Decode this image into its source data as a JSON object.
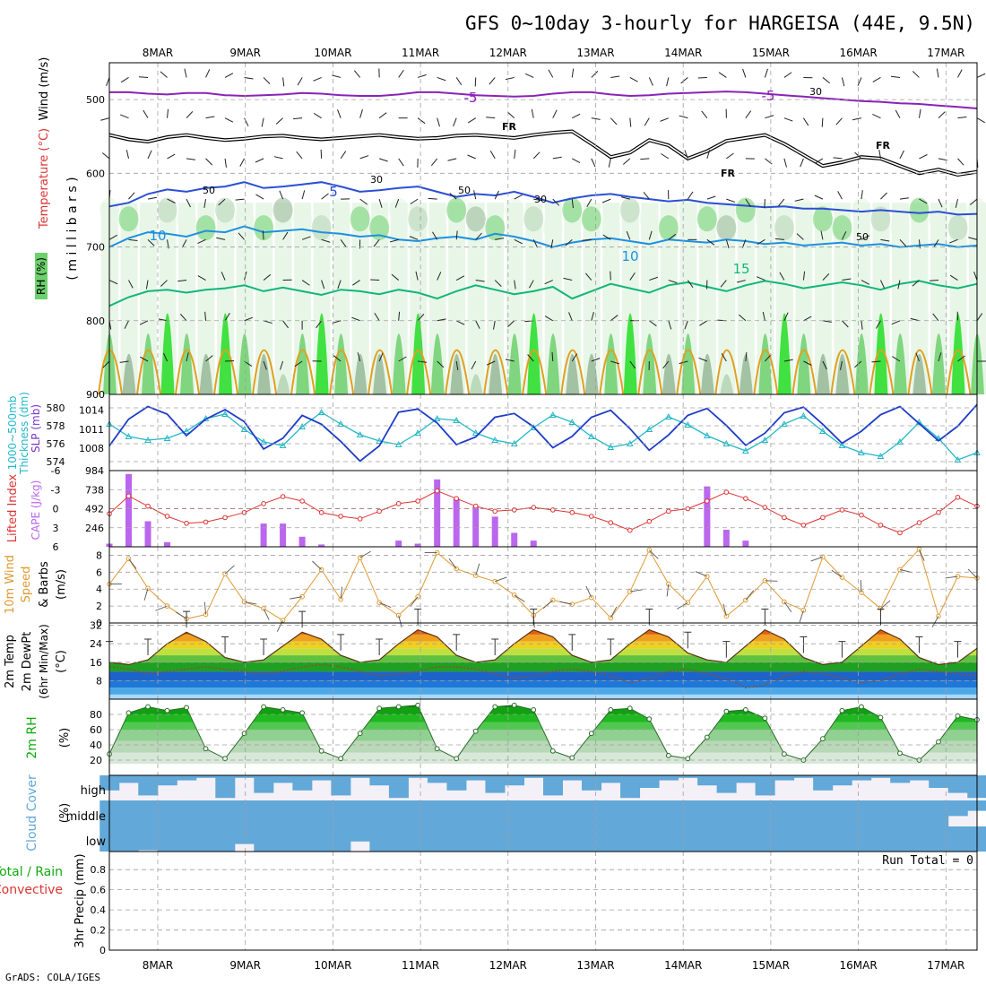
{
  "title": "GFS 0~10day 3-hourly for HARGEISA (44E, 9.5N)",
  "credit": "GrADS: COLA/IGES",
  "run_total": "Run Total = 0",
  "dates": [
    "8MAR",
    "9MAR",
    "10MAR",
    "11MAR",
    "12MAR",
    "13MAR",
    "14MAR",
    "15MAR",
    "16MAR",
    "17MAR"
  ],
  "colors": {
    "rh_light": "#e6f5e6",
    "rh_mid": "#b4d4b4",
    "rh_dark": "#96b896",
    "rh_green": "#6cd06c",
    "rh_bright": "#22dd22",
    "temp_5": "#2b4fd4",
    "temp_10": "#1e90e0",
    "temp_15": "#11b67a",
    "temp_20": "#e0a020",
    "temp_neg5": "#8a22b8",
    "freezing": "#000000",
    "slp": "#1e3cc8",
    "thickness": "#22b8c8",
    "cape": "#bb66ee",
    "li": "#dd3333",
    "wind10": "#e09a30",
    "cloud": "#62a8d8",
    "rh2m": "#11aa11"
  },
  "chart_data": [
    {
      "panel": "upper-air",
      "type": "heatmap",
      "ylabel_parts": [
        "RH (%)",
        "Temperature (°C)",
        "Wind (m/s)"
      ],
      "ylabel_unit": "( m i l l i b a r s )",
      "yticks": [
        500,
        600,
        700,
        800,
        900
      ],
      "ylim": [
        900,
        450
      ],
      "contour_labels": [
        "-5",
        "-5",
        "FR",
        "FR",
        "FR",
        "5",
        "10",
        "10",
        "15",
        "30",
        "30",
        "30",
        "50",
        "50",
        "50"
      ],
      "isotherm_levels": {
        "neg5": [
          490,
          490,
          492,
          493,
          491,
          491,
          494,
          495,
          494,
          493,
          491,
          492,
          494,
          495,
          495,
          493,
          490,
          490,
          492,
          494,
          495,
          496,
          495,
          492,
          490,
          490,
          493,
          495,
          494,
          492,
          491,
          490,
          489,
          490,
          492,
          494,
          496,
          498,
          500,
          502,
          503,
          505,
          506,
          508,
          510,
          512
        ],
        "freezing": [
          548,
          554,
          557,
          551,
          548,
          552,
          555,
          553,
          550,
          549,
          552,
          554,
          552,
          550,
          548,
          551,
          553,
          552,
          549,
          548,
          550,
          552,
          548,
          545,
          543,
          560,
          578,
          572,
          555,
          562,
          580,
          570,
          556,
          552,
          548,
          560,
          575,
          590,
          585,
          578,
          580,
          590,
          600,
          595,
          602,
          598
        ],
        "t5": [
          645,
          640,
          628,
          622,
          625,
          620,
          618,
          612,
          620,
          618,
          615,
          612,
          618,
          625,
          623,
          620,
          618,
          625,
          632,
          628,
          630,
          625,
          632,
          640,
          634,
          630,
          628,
          632,
          635,
          638,
          636,
          640,
          642,
          644,
          646,
          645,
          648,
          648,
          650,
          652,
          650,
          652,
          654,
          652,
          656,
          655
        ],
        "t10": [
          700,
          688,
          680,
          682,
          686,
          678,
          680,
          672,
          680,
          678,
          676,
          680,
          682,
          686,
          684,
          690,
          692,
          688,
          686,
          690,
          682,
          686,
          692,
          700,
          694,
          690,
          688,
          692,
          696,
          690,
          692,
          694,
          690,
          692,
          696,
          694,
          698,
          696,
          694,
          698,
          696,
          700,
          698,
          696,
          700,
          698
        ],
        "t15": [
          780,
          768,
          760,
          758,
          762,
          758,
          756,
          752,
          760,
          755,
          760,
          765,
          758,
          760,
          764,
          758,
          762,
          770,
          760,
          752,
          758,
          764,
          760,
          754,
          770,
          760,
          750,
          756,
          762,
          752,
          748,
          754,
          760,
          752,
          746,
          750,
          756,
          752,
          748,
          752,
          758,
          750,
          746,
          752,
          756,
          750
        ]
      },
      "rh_bands": [
        3,
        2,
        3,
        4,
        3,
        2,
        4,
        3,
        2,
        1,
        3,
        4,
        3,
        2,
        2,
        3,
        4,
        3,
        2,
        1,
        2,
        3,
        4,
        3,
        2,
        2,
        3,
        4,
        3,
        2,
        3,
        2,
        1,
        2,
        3,
        4,
        3,
        2,
        2,
        3,
        4,
        3,
        2,
        3,
        4,
        3
      ]
    },
    {
      "panel": "slp-thickness",
      "type": "line",
      "ylabel_left": "Thickness (dm)",
      "ylabel_left2": "1000~500mb",
      "ylabel_right": "SLP (mb)",
      "yticks_left": [
        574,
        576,
        578,
        580
      ],
      "yticks_right": [
        1008,
        1011,
        1014
      ],
      "series": [
        {
          "name": "SLP (mb)",
          "axis": "right",
          "values": [
            1008.4,
            1012.6,
            1014.6,
            1013.4,
            1010.0,
            1012.6,
            1014.1,
            1012.2,
            1007.9,
            1009.6,
            1013.2,
            1011.8,
            1009.1,
            1006.0,
            1008.4,
            1013.7,
            1014.2,
            1012.0,
            1008.6,
            1009.8,
            1012.9,
            1013.5,
            1011.4,
            1008.1,
            1009.9,
            1012.9,
            1014.0,
            1011.1,
            1007.7,
            1010.1,
            1013.2,
            1014.3,
            1011.6,
            1008.5,
            1010.4,
            1013.6,
            1014.5,
            1011.8,
            1008.8,
            1010.7,
            1013.3,
            1014.6,
            1011.9,
            1009.2,
            1011.5,
            1014.9
          ]
        },
        {
          "name": "Thickness (dm)",
          "axis": "left",
          "values": [
            578.2,
            576.8,
            576.4,
            576.6,
            577.4,
            578.8,
            579.3,
            577.6,
            576.2,
            575.8,
            577.9,
            579.5,
            578.2,
            577.0,
            576.3,
            575.9,
            577.2,
            578.8,
            578.6,
            577.2,
            576.4,
            576.0,
            577.8,
            579.2,
            578.4,
            576.8,
            575.6,
            576.0,
            577.6,
            579.0,
            578.1,
            576.9,
            576.0,
            575.2,
            576.4,
            578.2,
            579.1,
            577.4,
            575.8,
            575.0,
            574.6,
            576.2,
            578.4,
            576.6,
            574.2,
            575.0
          ]
        }
      ]
    },
    {
      "panel": "cape-li",
      "type": "bar",
      "ylabel_left": "Lifted Index",
      "ylabel_right": "CAPE (J/kg)",
      "yticks_left": [
        -6,
        -3,
        0,
        3,
        6
      ],
      "yticks_right": [
        246,
        492,
        738,
        984
      ],
      "series": [
        {
          "name": "CAPE (J/kg)",
          "type": "bar",
          "values": [
            40,
            940,
            330,
            60,
            0,
            0,
            0,
            0,
            300,
            300,
            130,
            30,
            0,
            0,
            0,
            80,
            40,
            870,
            620,
            520,
            390,
            180,
            80,
            0,
            0,
            0,
            0,
            0,
            0,
            0,
            0,
            780,
            220,
            80,
            0,
            0,
            0,
            0,
            0,
            0,
            0,
            0,
            0,
            0,
            0,
            0
          ]
        },
        {
          "name": "Lifted Index",
          "type": "line",
          "values": [
            0.8,
            -2.0,
            -0.4,
            1.2,
            2.3,
            2.1,
            1.4,
            0.6,
            -0.8,
            -1.9,
            -1.2,
            0.6,
            1.2,
            1.6,
            0.4,
            -0.8,
            -1.2,
            -2.8,
            -1.6,
            -0.4,
            0.4,
            0.2,
            -0.2,
            0.2,
            0.6,
            1.2,
            2.2,
            3.4,
            2.0,
            0.4,
            0.0,
            -1.2,
            -2.6,
            -1.6,
            -0.2,
            1.4,
            2.6,
            1.4,
            0.2,
            1.0,
            2.6,
            3.8,
            2.2,
            0.6,
            -1.8,
            -0.4
          ]
        }
      ]
    },
    {
      "panel": "wind10m",
      "type": "line",
      "ylabel_parts": [
        "10m Wind",
        "Speed",
        "& Barbs",
        "(m/s)"
      ],
      "yticks": [
        0,
        2,
        4,
        6,
        8
      ],
      "ylim": [
        0,
        9
      ],
      "values": [
        4.6,
        7.6,
        4.1,
        2.0,
        0.5,
        1.0,
        5.8,
        2.5,
        1.7,
        0.3,
        3.1,
        6.3,
        2.8,
        7.7,
        2.4,
        0.9,
        3.1,
        8.3,
        6.4,
        5.6,
        4.9,
        3.3,
        0.9,
        2.7,
        2.2,
        3.0,
        0.6,
        3.7,
        8.6,
        4.6,
        2.4,
        5.5,
        0.8,
        2.7,
        5.0,
        2.5,
        1.5,
        7.8,
        5.4,
        3.6,
        1.7,
        6.3,
        8.7,
        0.8,
        5.5,
        5.3
      ]
    },
    {
      "panel": "temp2m",
      "type": "area",
      "ylabel_parts": [
        "2m Temp",
        "2m DewPt",
        "(6hr Min/Max)",
        "(°C)"
      ],
      "yticks": [
        8,
        16,
        24,
        32
      ],
      "ylim": [
        0,
        33
      ],
      "series": [
        {
          "name": "2m Temp",
          "values": [
            16,
            15,
            17,
            24,
            29,
            25,
            18,
            16,
            17,
            23,
            29,
            26,
            19,
            16,
            17,
            24,
            30,
            27,
            19,
            16,
            17,
            24,
            30,
            27,
            19,
            16,
            17,
            24,
            30,
            27,
            20,
            17,
            16,
            23,
            30,
            26,
            18,
            15,
            16,
            23,
            30,
            26,
            18,
            15,
            16,
            22
          ]
        },
        {
          "name": "2m DewPt",
          "values": [
            14,
            13,
            11,
            12,
            13,
            14,
            13,
            12,
            11,
            12,
            14,
            15,
            14,
            12,
            10,
            11,
            12,
            14,
            14,
            13,
            11,
            9,
            10,
            12,
            13,
            12,
            10,
            7,
            9,
            12,
            13,
            11,
            9,
            5,
            6,
            10,
            12,
            11,
            9,
            7,
            8,
            11,
            13,
            12,
            11,
            10
          ]
        }
      ]
    },
    {
      "panel": "rh2m",
      "type": "area",
      "ylabel_parts": [
        "2m RH",
        "(%)"
      ],
      "yticks": [
        20,
        40,
        60,
        80
      ],
      "ylim": [
        0,
        100
      ],
      "values": [
        28,
        82,
        90,
        85,
        89,
        35,
        22,
        55,
        90,
        86,
        82,
        32,
        22,
        55,
        88,
        90,
        92,
        35,
        22,
        58,
        90,
        92,
        86,
        32,
        23,
        55,
        86,
        88,
        74,
        26,
        22,
        50,
        84,
        86,
        75,
        28,
        20,
        48,
        85,
        90,
        76,
        29,
        20,
        44,
        78,
        73
      ]
    },
    {
      "panel": "cloud",
      "type": "bar",
      "ylabel_parts": [
        "Cloud Cover",
        "(%)"
      ],
      "ytick_labels": [
        "high",
        "middle",
        "low"
      ],
      "series": [
        {
          "name": "high",
          "values": [
            60,
            30,
            80,
            40,
            20,
            10,
            90,
            10,
            70,
            30,
            60,
            20,
            80,
            10,
            40,
            90,
            10,
            30,
            60,
            20,
            70,
            40,
            10,
            80,
            20,
            60,
            30,
            90,
            50,
            20,
            10,
            40,
            70,
            30,
            80,
            20,
            10,
            60,
            40,
            20,
            10,
            30,
            20,
            50,
            70,
            90
          ]
        },
        {
          "name": "middle",
          "values": [
            100,
            100,
            100,
            100,
            100,
            100,
            100,
            100,
            100,
            100,
            100,
            100,
            100,
            100,
            100,
            100,
            100,
            100,
            100,
            100,
            100,
            100,
            100,
            100,
            100,
            100,
            100,
            100,
            100,
            100,
            100,
            100,
            100,
            100,
            100,
            100,
            100,
            100,
            100,
            100,
            100,
            100,
            100,
            100,
            60,
            40
          ]
        },
        {
          "name": "low",
          "values": [
            100,
            100,
            95,
            100,
            100,
            100,
            100,
            70,
            100,
            100,
            100,
            100,
            100,
            60,
            100,
            100,
            100,
            100,
            100,
            100,
            100,
            100,
            100,
            100,
            100,
            100,
            100,
            100,
            100,
            100,
            100,
            100,
            100,
            100,
            100,
            100,
            100,
            100,
            100,
            100,
            100,
            100,
            100,
            100,
            100,
            100
          ]
        }
      ]
    },
    {
      "panel": "precip",
      "type": "bar",
      "ylabel_parts": [
        "3hr Precip (mm)"
      ],
      "legend_parts": [
        "Total / Rain",
        "Convective"
      ],
      "yticks": [
        0,
        0.2,
        0.4,
        0.6,
        0.8
      ],
      "ylim": [
        0,
        1
      ],
      "values": [
        0,
        0,
        0,
        0,
        0,
        0,
        0,
        0,
        0,
        0,
        0,
        0,
        0,
        0,
        0,
        0,
        0,
        0,
        0,
        0,
        0,
        0,
        0,
        0,
        0,
        0,
        0,
        0,
        0,
        0,
        0,
        0,
        0,
        0,
        0,
        0,
        0,
        0,
        0,
        0,
        0,
        0,
        0,
        0,
        0,
        0
      ]
    }
  ]
}
